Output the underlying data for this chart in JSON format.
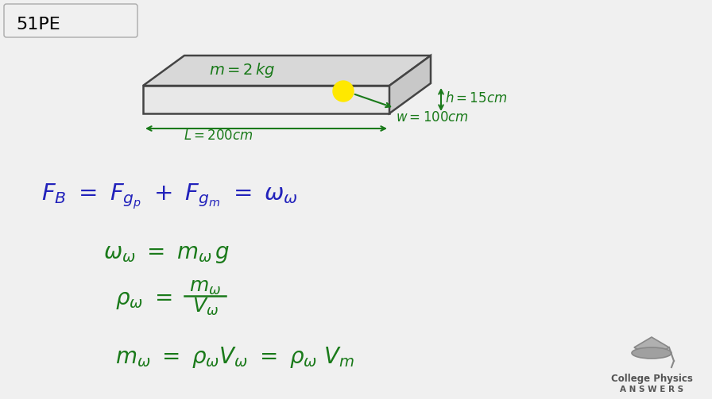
{
  "bg_color": "#f0f0f0",
  "title_box_text": "51PE",
  "green_color": "#1a7a1a",
  "blue_color": "#2222bb",
  "yellow_color": "#FFE800",
  "logo_text1": "College Physics",
  "logo_text2": "A N S W E R S"
}
